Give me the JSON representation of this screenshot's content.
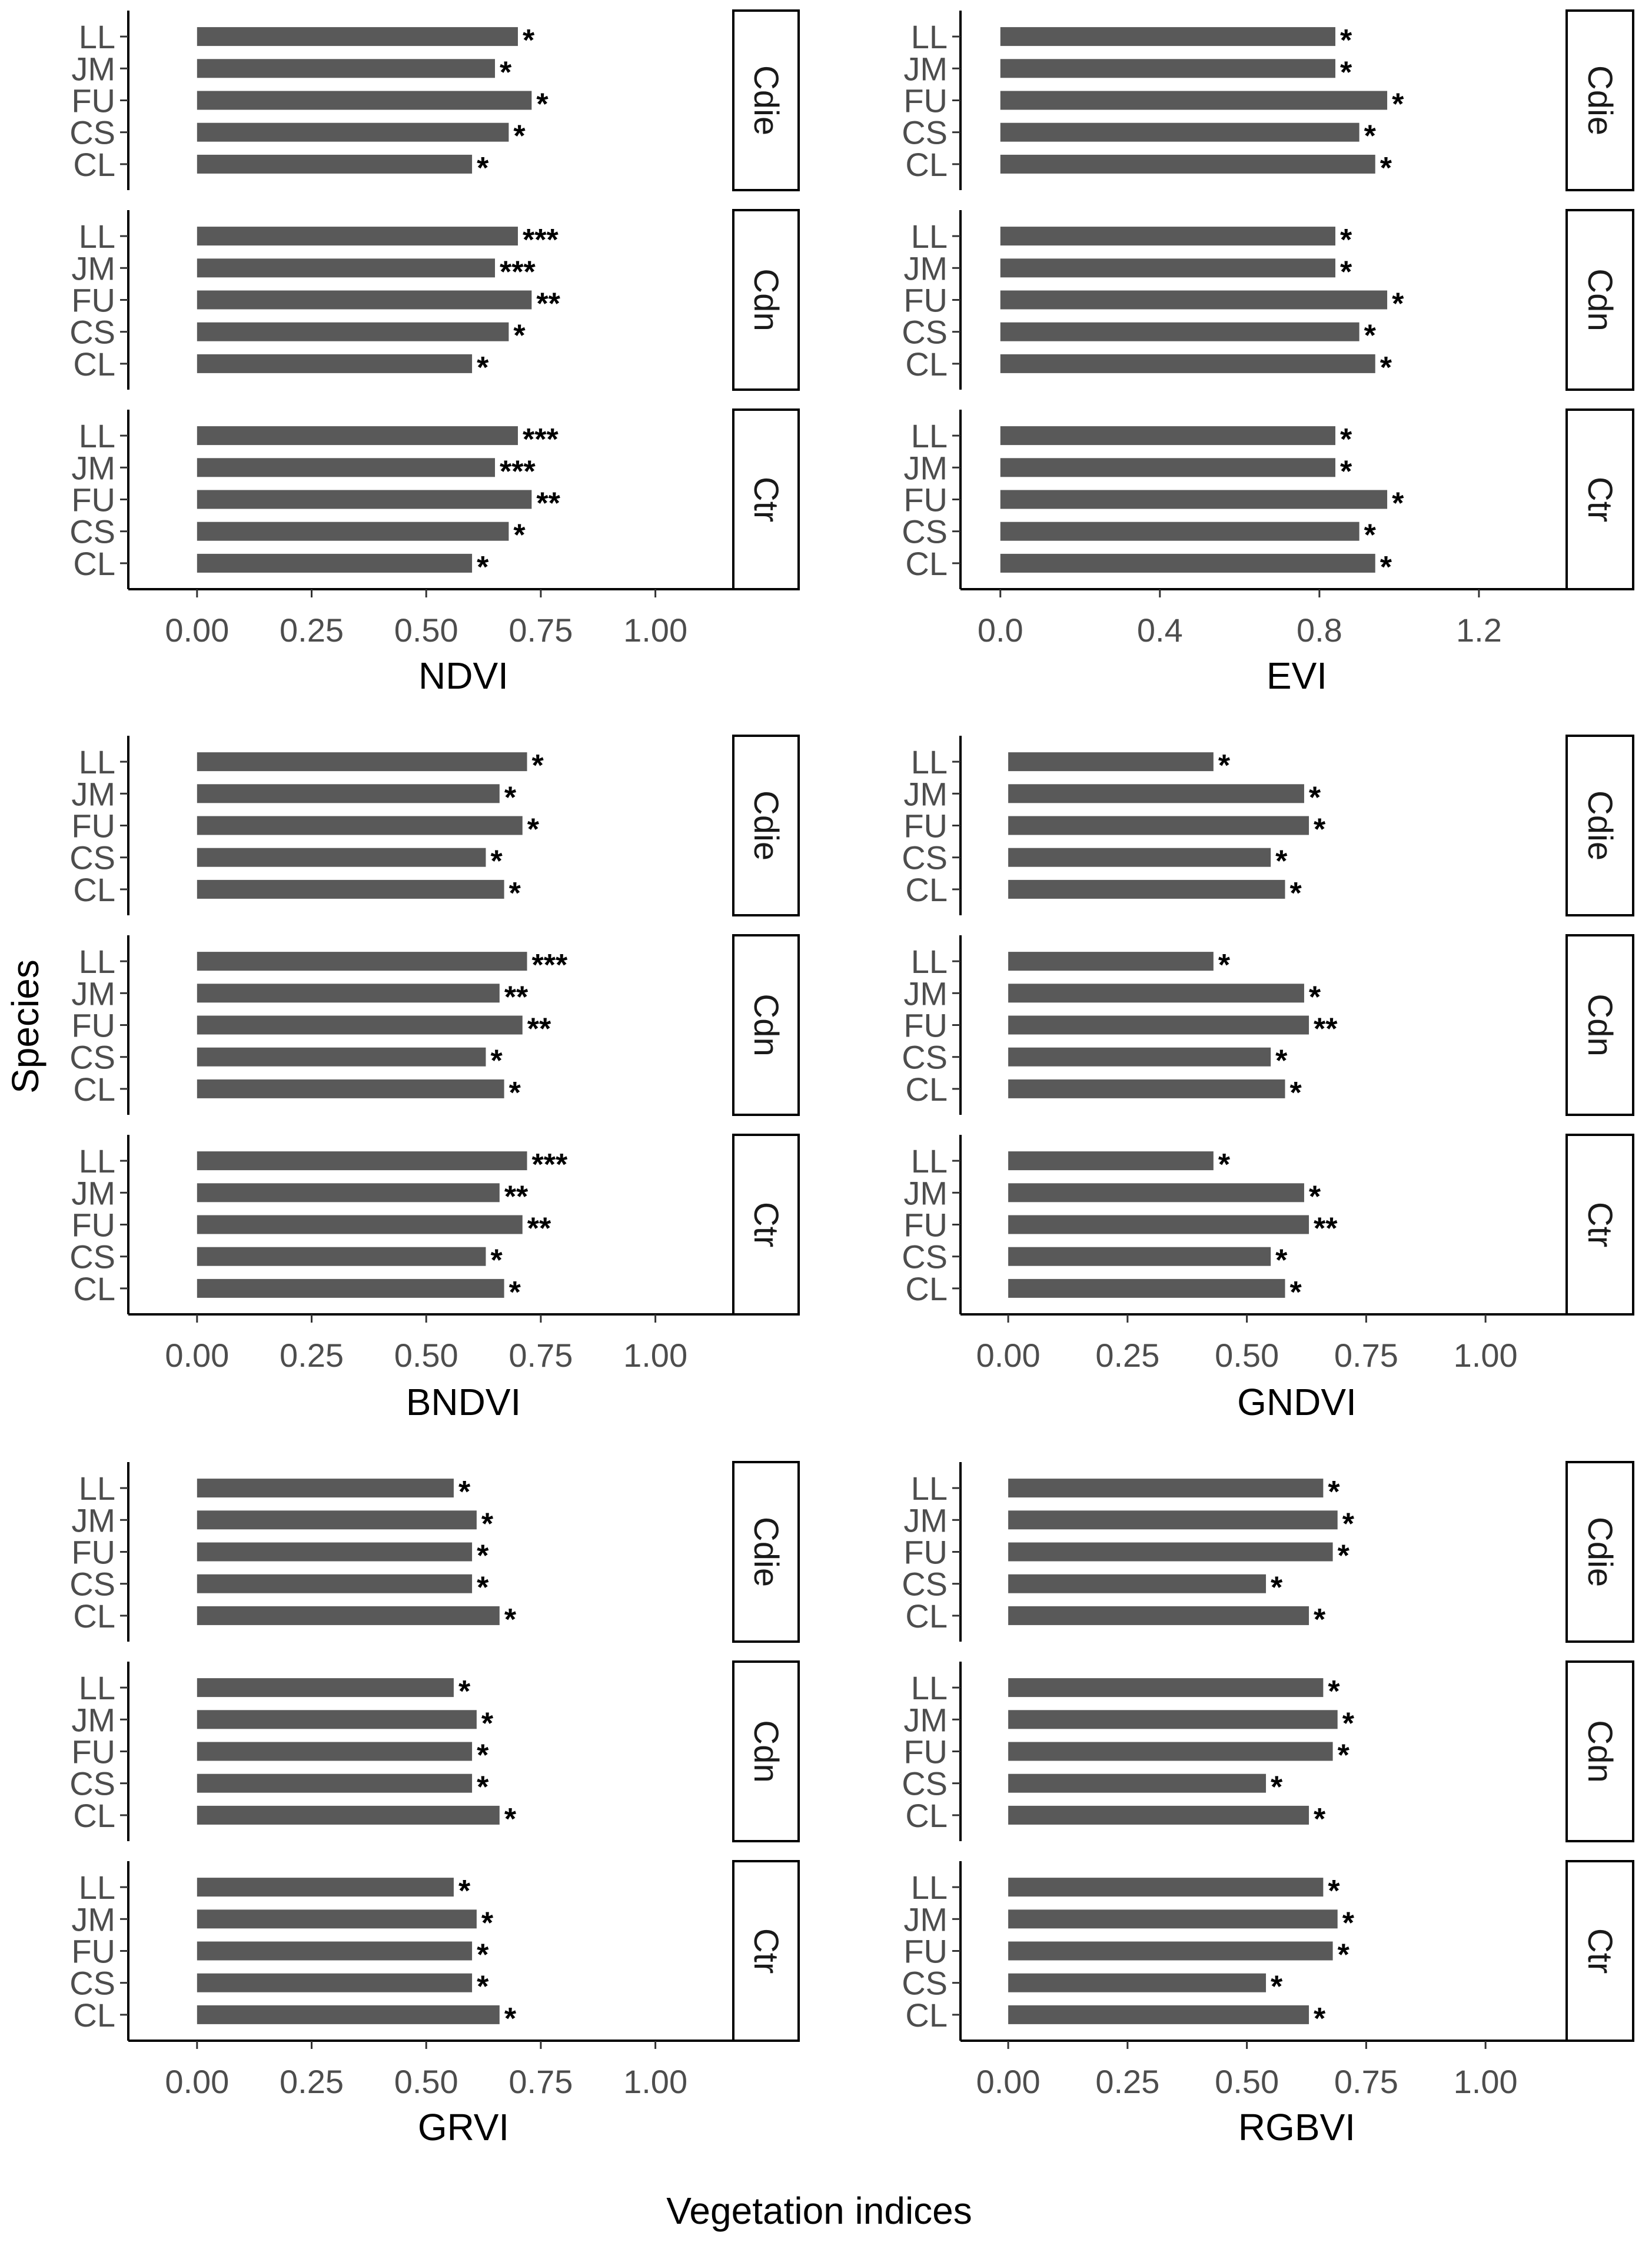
{
  "figure": {
    "ylabel": "Species",
    "xlabel": "Vegetation indices"
  },
  "colors": {
    "bar": "#595959",
    "axis": "#000000",
    "tick_text": "#4d4d4d"
  },
  "chart_data": [
    {
      "type": "bar",
      "orientation": "horizontal",
      "xlabel": "NDVI",
      "xlim": [
        -0.15,
        1.17
      ],
      "xticks": [
        0,
        0.25,
        0.5,
        0.75,
        1
      ],
      "xtick_labels": [
        "0.00",
        "0.25",
        "0.50",
        "0.75",
        "1.00"
      ],
      "categories": [
        "LL",
        "JM",
        "FU",
        "CS",
        "CL"
      ],
      "facets": [
        {
          "name": "Cdie",
          "values": [
            0.7,
            0.65,
            0.73,
            0.68,
            0.6
          ],
          "significance": [
            "*",
            "*",
            "*",
            "*",
            "*"
          ]
        },
        {
          "name": "Cdn",
          "values": [
            0.7,
            0.65,
            0.73,
            0.68,
            0.6
          ],
          "significance": [
            "***",
            "***",
            "**",
            "*",
            "*"
          ]
        },
        {
          "name": "Ctr",
          "values": [
            0.7,
            0.65,
            0.73,
            0.68,
            0.6
          ],
          "significance": [
            "***",
            "***",
            "**",
            "*",
            "*"
          ]
        }
      ]
    },
    {
      "type": "bar",
      "orientation": "horizontal",
      "xlabel": "EVI",
      "xlim": [
        -0.1,
        1.42
      ],
      "xticks": [
        0,
        0.4,
        0.8,
        1.2
      ],
      "xtick_labels": [
        "0.0",
        "0.4",
        "0.8",
        "1.2"
      ],
      "categories": [
        "LL",
        "JM",
        "FU",
        "CS",
        "CL"
      ],
      "facets": [
        {
          "name": "Cdie",
          "values": [
            0.84,
            0.84,
            0.97,
            0.9,
            0.94
          ],
          "significance": [
            "*",
            "*",
            "*",
            "*",
            "*"
          ]
        },
        {
          "name": "Cdn",
          "values": [
            0.84,
            0.84,
            0.97,
            0.9,
            0.94
          ],
          "significance": [
            "*",
            "*",
            "*",
            "*",
            "*"
          ]
        },
        {
          "name": "Ctr",
          "values": [
            0.84,
            0.84,
            0.97,
            0.9,
            0.94
          ],
          "significance": [
            "*",
            "*",
            "*",
            "*",
            "*"
          ]
        }
      ]
    },
    {
      "type": "bar",
      "orientation": "horizontal",
      "xlabel": "BNDVI",
      "xlim": [
        -0.15,
        1.17
      ],
      "xticks": [
        0,
        0.25,
        0.5,
        0.75,
        1
      ],
      "xtick_labels": [
        "0.00",
        "0.25",
        "0.50",
        "0.75",
        "1.00"
      ],
      "categories": [
        "LL",
        "JM",
        "FU",
        "CS",
        "CL"
      ],
      "facets": [
        {
          "name": "Cdie",
          "values": [
            0.72,
            0.66,
            0.71,
            0.63,
            0.67
          ],
          "significance": [
            "*",
            "*",
            "*",
            "*",
            "*"
          ]
        },
        {
          "name": "Cdn",
          "values": [
            0.72,
            0.66,
            0.71,
            0.63,
            0.67
          ],
          "significance": [
            "***",
            "**",
            "**",
            "*",
            "*"
          ]
        },
        {
          "name": "Ctr",
          "values": [
            0.72,
            0.66,
            0.71,
            0.63,
            0.67
          ],
          "significance": [
            "***",
            "**",
            "**",
            "*",
            "*"
          ]
        }
      ]
    },
    {
      "type": "bar",
      "orientation": "horizontal",
      "xlabel": "GNDVI",
      "xlim": [
        -0.1,
        1.17
      ],
      "xticks": [
        0,
        0.25,
        0.5,
        0.75,
        1
      ],
      "xtick_labels": [
        "0.00",
        "0.25",
        "0.50",
        "0.75",
        "1.00"
      ],
      "categories": [
        "LL",
        "JM",
        "FU",
        "CS",
        "CL"
      ],
      "facets": [
        {
          "name": "Cdie",
          "values": [
            0.43,
            0.62,
            0.63,
            0.55,
            0.58
          ],
          "significance": [
            "*",
            "*",
            "*",
            "*",
            "*"
          ]
        },
        {
          "name": "Cdn",
          "values": [
            0.43,
            0.62,
            0.63,
            0.55,
            0.58
          ],
          "significance": [
            "*",
            "*",
            "**",
            "*",
            "*"
          ]
        },
        {
          "name": "Ctr",
          "values": [
            0.43,
            0.62,
            0.63,
            0.55,
            0.58
          ],
          "significance": [
            "*",
            "*",
            "**",
            "*",
            "*"
          ]
        }
      ]
    },
    {
      "type": "bar",
      "orientation": "horizontal",
      "xlabel": "GRVI",
      "xlim": [
        -0.15,
        1.17
      ],
      "xticks": [
        0,
        0.25,
        0.5,
        0.75,
        1
      ],
      "xtick_labels": [
        "0.00",
        "0.25",
        "0.50",
        "0.75",
        "1.00"
      ],
      "categories": [
        "LL",
        "JM",
        "FU",
        "CS",
        "CL"
      ],
      "facets": [
        {
          "name": "Cdie",
          "values": [
            0.56,
            0.61,
            0.6,
            0.6,
            0.66
          ],
          "significance": [
            "*",
            "*",
            "*",
            "*",
            "*"
          ]
        },
        {
          "name": "Cdn",
          "values": [
            0.56,
            0.61,
            0.6,
            0.6,
            0.66
          ],
          "significance": [
            "*",
            "*",
            "*",
            "*",
            "*"
          ]
        },
        {
          "name": "Ctr",
          "values": [
            0.56,
            0.61,
            0.6,
            0.6,
            0.66
          ],
          "significance": [
            "*",
            "*",
            "*",
            "*",
            "*"
          ]
        }
      ]
    },
    {
      "type": "bar",
      "orientation": "horizontal",
      "xlabel": "RGBVI",
      "xlim": [
        -0.1,
        1.17
      ],
      "xticks": [
        0,
        0.25,
        0.5,
        0.75,
        1
      ],
      "xtick_labels": [
        "0.00",
        "0.25",
        "0.50",
        "0.75",
        "1.00"
      ],
      "categories": [
        "LL",
        "JM",
        "FU",
        "CS",
        "CL"
      ],
      "facets": [
        {
          "name": "Cdie",
          "values": [
            0.66,
            0.69,
            0.68,
            0.54,
            0.63
          ],
          "significance": [
            "*",
            "*",
            "*",
            "*",
            "*"
          ]
        },
        {
          "name": "Cdn",
          "values": [
            0.66,
            0.69,
            0.68,
            0.54,
            0.63
          ],
          "significance": [
            "*",
            "*",
            "*",
            "*",
            "*"
          ]
        },
        {
          "name": "Ctr",
          "values": [
            0.66,
            0.69,
            0.68,
            0.54,
            0.63
          ],
          "significance": [
            "*",
            "*",
            "*",
            "*",
            "*"
          ]
        }
      ]
    }
  ]
}
